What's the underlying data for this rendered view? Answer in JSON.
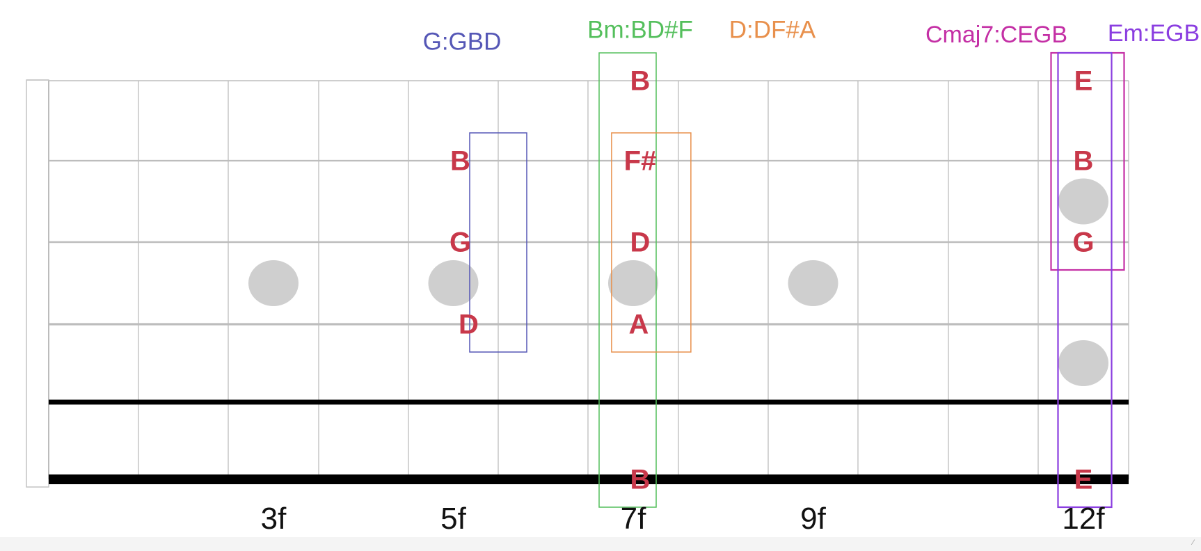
{
  "colors": {
    "note_text": "#c8384a",
    "string": "#bdbdbd",
    "fret": "#bcbcbc",
    "thick_string": "#000000",
    "inlay": "#cfcfcf",
    "fret_label": "#111111",
    "g_chord": "#5557b6",
    "bm_chord": "#54bf5c",
    "d_chord": "#e8904c",
    "cmaj7_chord": "#c42fa5",
    "em_chord": "#8a3de0"
  },
  "fret_labels": [
    {
      "fret": 3,
      "text": "3f"
    },
    {
      "fret": 5,
      "text": "5f"
    },
    {
      "fret": 7,
      "text": "7f"
    },
    {
      "fret": 9,
      "text": "9f"
    },
    {
      "fret": 12,
      "text": "12f"
    }
  ],
  "inlays": [
    {
      "fret": 3,
      "between_strings": [
        3,
        4
      ]
    },
    {
      "fret": 5,
      "between_strings": [
        3,
        4
      ]
    },
    {
      "fret": 7,
      "between_strings": [
        3,
        4
      ]
    },
    {
      "fret": 9,
      "between_strings": [
        3,
        4
      ]
    },
    {
      "fret": 12,
      "between_strings": [
        2,
        3
      ]
    },
    {
      "fret": 12,
      "between_strings": [
        4,
        5
      ]
    }
  ],
  "chords": [
    {
      "id": "g",
      "label": "G:GBD",
      "color_key": "g_chord",
      "fret": 5.5,
      "strings": [
        2,
        4
      ]
    },
    {
      "id": "bm",
      "label": "Bm:BD#F",
      "color_key": "bm_chord",
      "fret": 7,
      "strings": [
        1,
        6
      ]
    },
    {
      "id": "d",
      "label": "D:DF#A",
      "color_key": "d_chord",
      "fret": 7.2,
      "strings": [
        2,
        4
      ]
    },
    {
      "id": "cmaj7",
      "label": "Cmaj7:CEGB",
      "color_key": "cmaj7_chord",
      "fret": 12,
      "strings": [
        1,
        3
      ]
    },
    {
      "id": "em",
      "label": "Em:EGB",
      "color_key": "em_chord",
      "fret": 12,
      "strings": [
        1,
        6
      ]
    }
  ],
  "notes": [
    {
      "name": "B",
      "string": 1,
      "fret": 7
    },
    {
      "name": "F#",
      "string": 2,
      "fret": 7
    },
    {
      "name": "D",
      "string": 3,
      "fret": 7
    },
    {
      "name": "A",
      "string": 4,
      "fret": 7
    },
    {
      "name": "B",
      "string": 6,
      "fret": 7
    },
    {
      "name": "B",
      "string": 2,
      "fret": 5
    },
    {
      "name": "G",
      "string": 3,
      "fret": 5
    },
    {
      "name": "D",
      "string": 4,
      "fret": 5
    },
    {
      "name": "E",
      "string": 1,
      "fret": 12
    },
    {
      "name": "B",
      "string": 2,
      "fret": 12
    },
    {
      "name": "G",
      "string": 3,
      "fret": 12
    },
    {
      "name": "E",
      "string": 6,
      "fret": 12
    }
  ]
}
